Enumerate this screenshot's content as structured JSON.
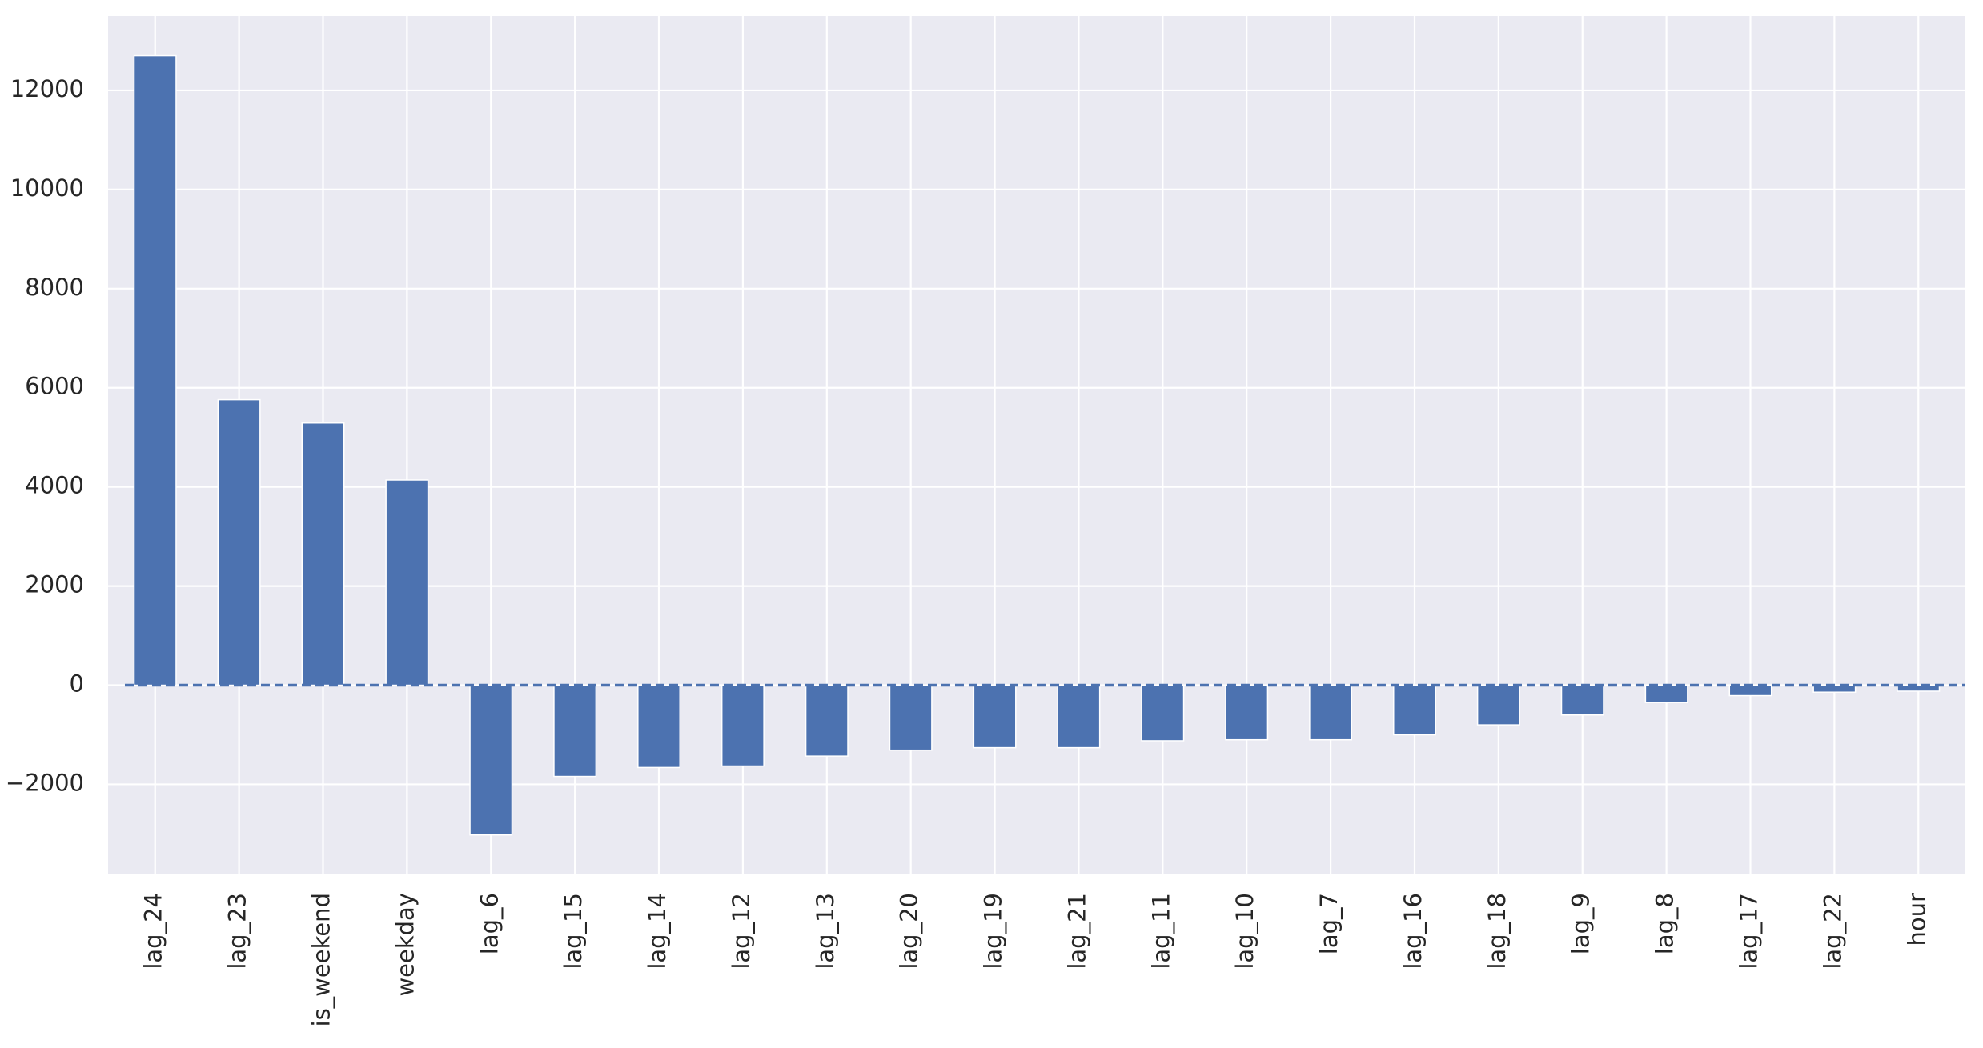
{
  "chart_data": {
    "type": "bar",
    "title": "",
    "xlabel": "",
    "ylabel": "",
    "categories": [
      "lag_24",
      "lag_23",
      "is_weekend",
      "weekday",
      "lag_6",
      "lag_15",
      "lag_14",
      "lag_12",
      "lag_13",
      "lag_20",
      "lag_19",
      "lag_21",
      "lag_11",
      "lag_10",
      "lag_7",
      "lag_16",
      "lag_18",
      "lag_9",
      "lag_8",
      "lag_17",
      "lag_22",
      "hour"
    ],
    "values": [
      12700,
      5760,
      5290,
      4140,
      -3020,
      -1840,
      -1660,
      -1630,
      -1430,
      -1310,
      -1260,
      -1260,
      -1120,
      -1100,
      -1100,
      -1000,
      -800,
      -600,
      -350,
      -210,
      -140,
      -120
    ],
    "ylim": [
      -3800,
      13500
    ],
    "yticks": [
      -2000,
      0,
      2000,
      4000,
      6000,
      8000,
      10000,
      12000
    ],
    "ytick_labels": [
      "−2000",
      "0",
      "2000",
      "4000",
      "6000",
      "8000",
      "10000",
      "12000"
    ],
    "grid": true,
    "reference_line": {
      "y": 0,
      "style": "dashed"
    },
    "colors": {
      "bar": "#4c72b0",
      "background": "#eaeaf2",
      "grid": "#ffffff",
      "reference_line": "#4c72b0"
    }
  }
}
